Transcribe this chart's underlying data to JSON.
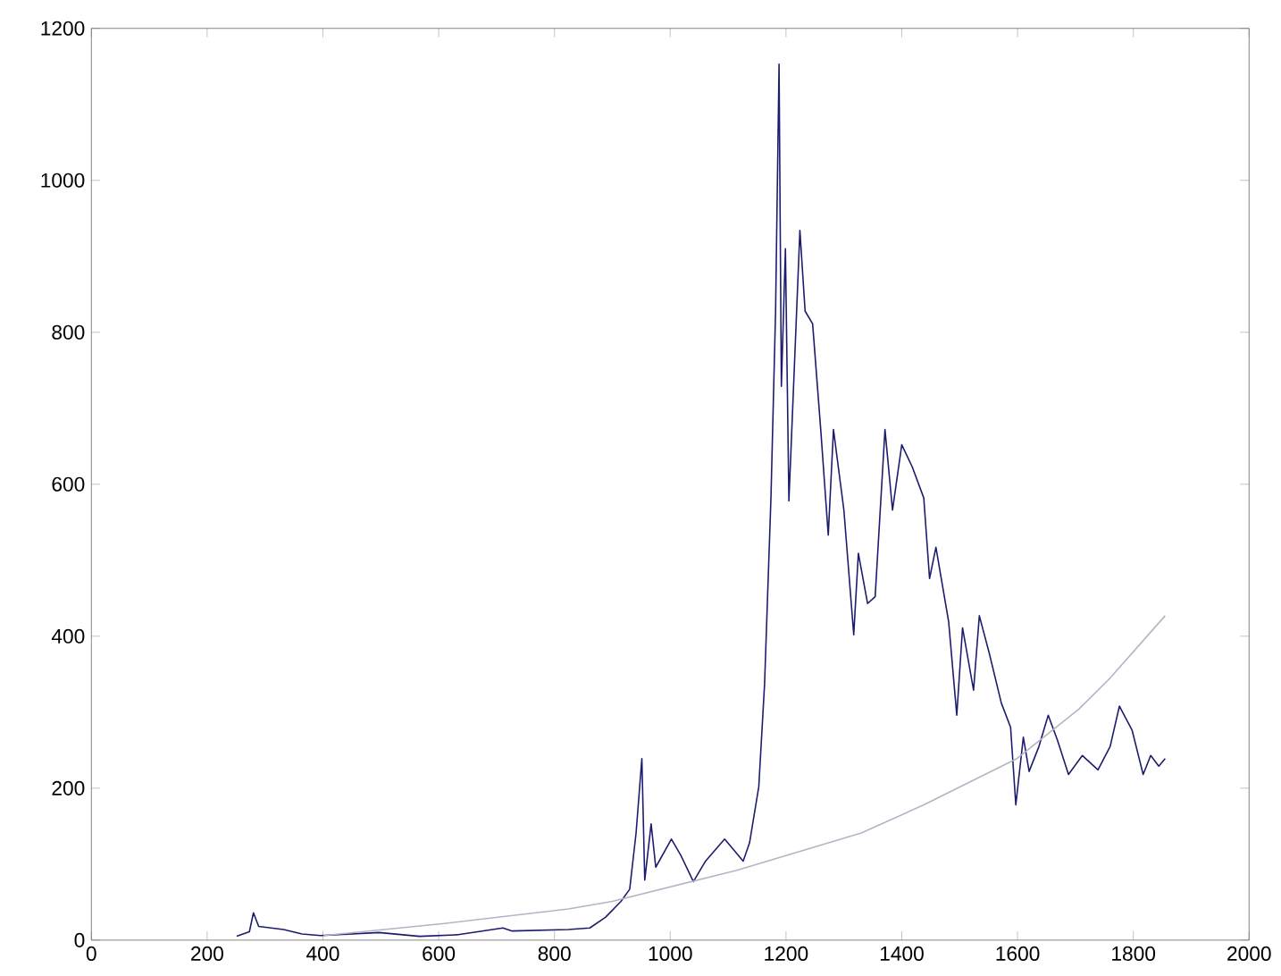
{
  "chart_data": {
    "type": "line",
    "xlim": [
      0,
      2000
    ],
    "ylim": [
      0,
      1200
    ],
    "xticks": [
      0,
      200,
      400,
      600,
      800,
      1000,
      1200,
      1400,
      1600,
      1800,
      2000
    ],
    "yticks": [
      0,
      200,
      400,
      600,
      800,
      1000,
      1200
    ],
    "grid": false,
    "marker": "none",
    "line_style": "solid",
    "series": [
      {
        "color": "#1c1c6e",
        "x": [
          251,
          273,
          280,
          289,
          332,
          364,
          396,
          497,
          567,
          631,
          711,
          727,
          824,
          861,
          888,
          915,
          930,
          941,
          951,
          956,
          967,
          975,
          1002,
          1018,
          1040,
          1061,
          1094,
          1126,
          1137,
          1153,
          1163,
          1174,
          1182,
          1188,
          1192,
          1199,
          1205,
          1214,
          1224,
          1233,
          1246,
          1260,
          1273,
          1282,
          1300,
          1317,
          1325,
          1341,
          1354,
          1371,
          1384,
          1400,
          1418,
          1438,
          1448,
          1459,
          1481,
          1495,
          1505,
          1524,
          1534,
          1551,
          1572,
          1588,
          1597,
          1610,
          1620,
          1637,
          1653,
          1669,
          1688,
          1712,
          1739,
          1760,
          1776,
          1798,
          1817,
          1830,
          1844,
          1855
        ],
        "values": [
          5,
          11,
          36,
          18,
          14,
          8,
          6,
          10,
          5,
          7,
          16,
          12,
          14,
          16,
          30,
          51,
          67,
          141,
          239,
          79,
          153,
          96,
          133,
          112,
          77,
          104,
          133,
          104,
          128,
          202,
          337,
          582,
          828,
          1153,
          729,
          910,
          578,
          746,
          934,
          828,
          811,
          672,
          533,
          672,
          566,
          402,
          509,
          443,
          452,
          672,
          566,
          652,
          623,
          582,
          476,
          517,
          419,
          296,
          411,
          329,
          427,
          378,
          312,
          280,
          178,
          267,
          222,
          255,
          296,
          263,
          218,
          243,
          224,
          255,
          308,
          276,
          218,
          243,
          229,
          239
        ]
      },
      {
        "color": "#b4b4c4",
        "x": [
          401,
          610,
          824,
          900,
          1115,
          1330,
          1438,
          1599,
          1706,
          1760,
          1855
        ],
        "values": [
          6,
          22,
          41,
          51,
          92,
          141,
          178,
          239,
          304,
          345,
          427
        ]
      }
    ]
  }
}
